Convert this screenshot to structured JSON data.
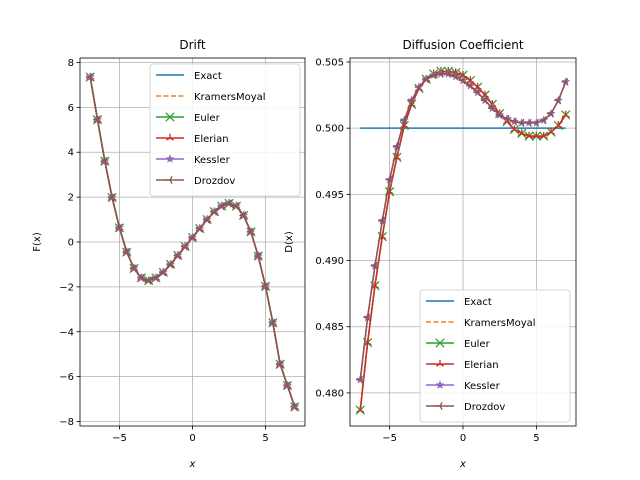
{
  "figure": {
    "background": "#ffffff"
  },
  "chart_data": [
    {
      "type": "line",
      "title": "Drift",
      "xlabel": "x",
      "ylabel": "F(x)",
      "xlim": [
        -7.7,
        7.7
      ],
      "ylim": [
        -8.2,
        8.2
      ],
      "xticks": [
        -5,
        0,
        5
      ],
      "xtick_labels": [
        "−5",
        "0",
        "5"
      ],
      "yticks": [
        -8,
        -6,
        -4,
        -2,
        0,
        2,
        4,
        6,
        8
      ],
      "ytick_labels": [
        "−8",
        "−6",
        "−4",
        "−2",
        "0",
        "2",
        "4",
        "6",
        "8"
      ],
      "grid": true,
      "legend_position": "upper-right",
      "x": [
        -7.0,
        -6.5,
        -6.0,
        -5.5,
        -5.0,
        -4.5,
        -4.0,
        -3.5,
        -3.0,
        -2.5,
        -2.0,
        -1.5,
        -1.0,
        -0.5,
        0.0,
        0.5,
        1.0,
        1.5,
        2.0,
        2.5,
        3.0,
        3.5,
        4.0,
        4.5,
        5.0,
        5.5,
        6.0,
        6.5,
        7.0
      ],
      "series": [
        {
          "name": "Exact",
          "color": "#1f77b4",
          "marker": "none",
          "dashed": false,
          "values": [
            7.35,
            5.45,
            3.6,
            1.98,
            0.63,
            -0.45,
            -1.18,
            -1.6,
            -1.72,
            -1.6,
            -1.35,
            -1.0,
            -0.6,
            -0.2,
            0.2,
            0.6,
            1.0,
            1.35,
            1.6,
            1.72,
            1.6,
            1.18,
            0.45,
            -0.63,
            -1.98,
            -3.6,
            -5.45,
            -6.4,
            -7.35
          ]
        },
        {
          "name": "KramersMoyal",
          "color": "#ff7f0e",
          "marker": "none",
          "dashed": true,
          "values": [
            7.35,
            5.45,
            3.6,
            1.98,
            0.63,
            -0.45,
            -1.18,
            -1.6,
            -1.72,
            -1.6,
            -1.35,
            -1.0,
            -0.6,
            -0.2,
            0.2,
            0.6,
            1.0,
            1.35,
            1.6,
            1.72,
            1.6,
            1.18,
            0.45,
            -0.63,
            -1.98,
            -3.6,
            -5.45,
            -6.4,
            -7.35
          ]
        },
        {
          "name": "Euler",
          "color": "#2ca02c",
          "marker": "x",
          "dashed": false,
          "values": [
            7.35,
            5.45,
            3.6,
            1.98,
            0.63,
            -0.45,
            -1.18,
            -1.6,
            -1.72,
            -1.6,
            -1.35,
            -1.0,
            -0.6,
            -0.2,
            0.2,
            0.6,
            1.0,
            1.35,
            1.6,
            1.72,
            1.6,
            1.18,
            0.45,
            -0.63,
            -1.98,
            -3.6,
            -5.45,
            -6.4,
            -7.35
          ]
        },
        {
          "name": "Elerian",
          "color": "#d62728",
          "marker": "tri",
          "dashed": false,
          "values": [
            7.35,
            5.45,
            3.6,
            1.98,
            0.63,
            -0.45,
            -1.18,
            -1.6,
            -1.72,
            -1.6,
            -1.35,
            -1.0,
            -0.6,
            -0.2,
            0.2,
            0.6,
            1.0,
            1.35,
            1.6,
            1.72,
            1.6,
            1.18,
            0.45,
            -0.63,
            -1.98,
            -3.6,
            -5.45,
            -6.4,
            -7.35
          ]
        },
        {
          "name": "Kessler",
          "color": "#9467bd",
          "marker": "star",
          "dashed": false,
          "values": [
            7.35,
            5.45,
            3.6,
            1.98,
            0.63,
            -0.45,
            -1.18,
            -1.6,
            -1.72,
            -1.6,
            -1.35,
            -1.0,
            -0.6,
            -0.2,
            0.2,
            0.6,
            1.0,
            1.35,
            1.6,
            1.72,
            1.6,
            1.18,
            0.45,
            -0.63,
            -1.98,
            -3.6,
            -5.45,
            -6.4,
            -7.35
          ]
        },
        {
          "name": "Drozdov",
          "color": "#8c564b",
          "marker": "tri-left",
          "dashed": false,
          "values": [
            7.35,
            5.45,
            3.6,
            1.98,
            0.63,
            -0.45,
            -1.18,
            -1.6,
            -1.72,
            -1.6,
            -1.35,
            -1.0,
            -0.6,
            -0.2,
            0.2,
            0.6,
            1.0,
            1.35,
            1.6,
            1.72,
            1.6,
            1.18,
            0.45,
            -0.63,
            -1.98,
            -3.6,
            -5.45,
            -6.4,
            -7.35
          ]
        }
      ]
    },
    {
      "type": "line",
      "title": "Diffusion Coefficient",
      "xlabel": "x",
      "ylabel": "D(x)",
      "xlim": [
        -7.7,
        7.7
      ],
      "ylim": [
        0.4775,
        0.5053
      ],
      "xticks": [
        -5,
        0,
        5
      ],
      "xtick_labels": [
        "−5",
        "0",
        "5"
      ],
      "yticks": [
        0.48,
        0.485,
        0.49,
        0.495,
        0.5,
        0.505
      ],
      "ytick_labels": [
        "0.480",
        "0.485",
        "0.490",
        "0.495",
        "0.500",
        "0.505"
      ],
      "grid": true,
      "legend_position": "lower-right",
      "x": [
        -7.0,
        -6.5,
        -6.0,
        -5.5,
        -5.0,
        -4.5,
        -4.0,
        -3.5,
        -3.0,
        -2.5,
        -2.0,
        -1.5,
        -1.0,
        -0.5,
        0.0,
        0.5,
        1.0,
        1.5,
        2.0,
        2.5,
        3.0,
        3.5,
        4.0,
        4.5,
        5.0,
        5.5,
        6.0,
        6.5,
        7.0
      ],
      "series": [
        {
          "name": "Exact",
          "color": "#1f77b4",
          "marker": "none",
          "dashed": false,
          "values": [
            0.5,
            0.5,
            0.5,
            0.5,
            0.5,
            0.5,
            0.5,
            0.5,
            0.5,
            0.5,
            0.5,
            0.5,
            0.5,
            0.5,
            0.5,
            0.5,
            0.5,
            0.5,
            0.5,
            0.5,
            0.5,
            0.5,
            0.5,
            0.5,
            0.5,
            0.5,
            0.5,
            0.5,
            0.5
          ]
        },
        {
          "name": "KramersMoyal",
          "color": "#ff7f0e",
          "marker": "none",
          "dashed": true,
          "values": [
            0.4787,
            0.4838,
            0.4881,
            0.4918,
            0.4952,
            0.4978,
            0.5002,
            0.5018,
            0.503,
            0.5037,
            0.5041,
            0.5043,
            0.5043,
            0.5042,
            0.504,
            0.5036,
            0.5031,
            0.5025,
            0.5018,
            0.5011,
            0.5005,
            0.4999,
            0.4996,
            0.4994,
            0.4994,
            0.4994,
            0.4997,
            0.5002,
            0.501
          ]
        },
        {
          "name": "Euler",
          "color": "#2ca02c",
          "marker": "x",
          "dashed": false,
          "values": [
            0.4787,
            0.4838,
            0.4881,
            0.4918,
            0.4952,
            0.4978,
            0.5002,
            0.5018,
            0.503,
            0.5037,
            0.5041,
            0.5043,
            0.5043,
            0.5042,
            0.504,
            0.5036,
            0.5031,
            0.5025,
            0.5018,
            0.5011,
            0.5005,
            0.4999,
            0.4996,
            0.4994,
            0.4994,
            0.4994,
            0.4997,
            0.5002,
            0.501
          ]
        },
        {
          "name": "Elerian",
          "color": "#d62728",
          "marker": "tri",
          "dashed": false,
          "values": [
            0.4787,
            0.4838,
            0.4881,
            0.4918,
            0.4952,
            0.4978,
            0.5002,
            0.5018,
            0.503,
            0.5037,
            0.5041,
            0.5043,
            0.5043,
            0.5042,
            0.504,
            0.5036,
            0.5031,
            0.5025,
            0.5018,
            0.5011,
            0.5005,
            0.4999,
            0.4996,
            0.4994,
            0.4994,
            0.4994,
            0.4997,
            0.5002,
            0.501
          ]
        },
        {
          "name": "Kessler",
          "color": "#9467bd",
          "marker": "star",
          "dashed": false,
          "values": [
            0.481,
            0.4857,
            0.4896,
            0.493,
            0.4961,
            0.4986,
            0.5006,
            0.5021,
            0.5031,
            0.5037,
            0.504,
            0.5041,
            0.5041,
            0.5039,
            0.5036,
            0.5032,
            0.5027,
            0.5021,
            0.5015,
            0.501,
            0.5007,
            0.5005,
            0.5004,
            0.5004,
            0.5004,
            0.5006,
            0.5011,
            0.5021,
            0.5035
          ]
        },
        {
          "name": "Drozdov",
          "color": "#8c564b",
          "marker": "tri-left",
          "dashed": false,
          "values": [
            0.481,
            0.4857,
            0.4896,
            0.493,
            0.4961,
            0.4986,
            0.5006,
            0.5021,
            0.5031,
            0.5037,
            0.504,
            0.5041,
            0.5041,
            0.5039,
            0.5036,
            0.5032,
            0.5027,
            0.5021,
            0.5015,
            0.501,
            0.5007,
            0.5005,
            0.5004,
            0.5004,
            0.5004,
            0.5006,
            0.5011,
            0.5021,
            0.5035
          ]
        }
      ]
    }
  ]
}
